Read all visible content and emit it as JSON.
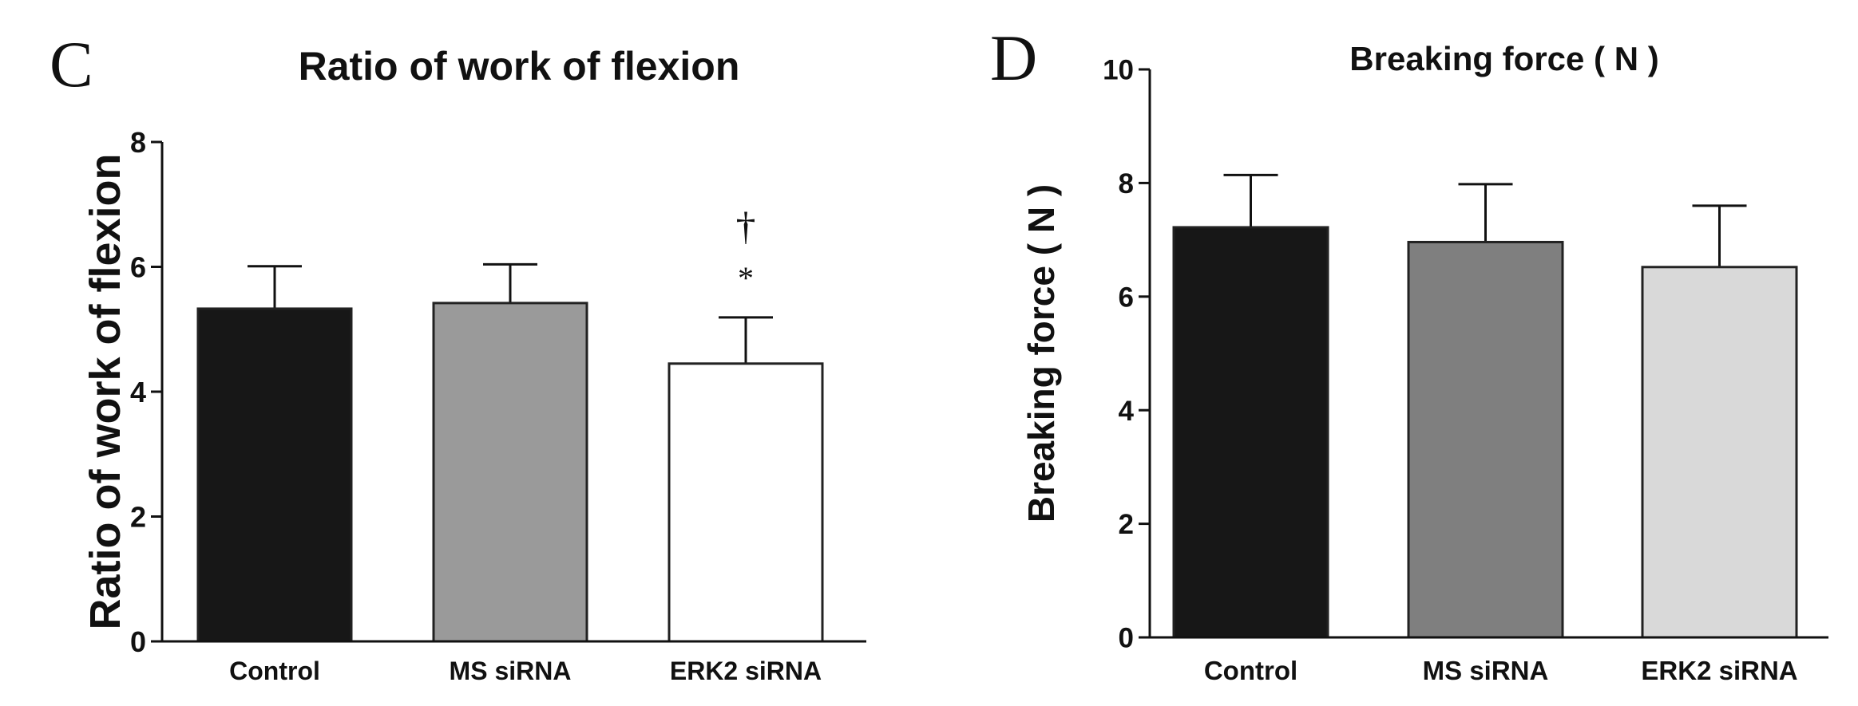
{
  "chart_data": [
    {
      "panel_label": "C",
      "type": "bar",
      "title": "Ratio of work of flexion",
      "ylabel": "Ratio of work of flexion",
      "xlabel": "",
      "ylim": [
        0,
        8
      ],
      "yticks": [
        0,
        2,
        4,
        6,
        8
      ],
      "categories": [
        "Control",
        "MS siRNA",
        "ERK2 siRNA"
      ],
      "values": [
        5.33,
        5.42,
        4.45
      ],
      "errors": [
        0.68,
        0.62,
        0.74
      ],
      "bar_colors": [
        "#171717",
        "#9a9a9a",
        "#ffffff"
      ],
      "annotations": [
        {
          "category": "ERK2 siRNA",
          "text": "†"
        },
        {
          "category": "ERK2 siRNA",
          "text": "*"
        }
      ],
      "grid": false,
      "legend": "none"
    },
    {
      "panel_label": "D",
      "type": "bar",
      "title": "Breaking force ( N )",
      "ylabel": "Breaking force ( N )",
      "xlabel": "",
      "ylim": [
        0,
        10
      ],
      "yticks": [
        0,
        2,
        4,
        6,
        8,
        10
      ],
      "categories": [
        "Control",
        "MS siRNA",
        "ERK2 siRNA"
      ],
      "values": [
        7.22,
        6.96,
        6.52
      ],
      "errors": [
        0.92,
        1.02,
        1.08
      ],
      "bar_colors": [
        "#171717",
        "#7f7f7f",
        "#d9d9d9"
      ],
      "annotations": [],
      "grid": false,
      "legend": "none"
    }
  ]
}
